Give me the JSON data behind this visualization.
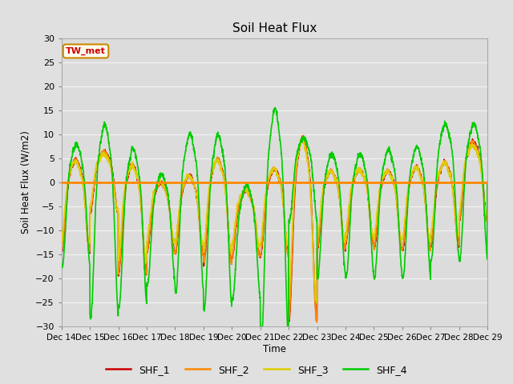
{
  "title": "Soil Heat Flux",
  "ylabel": "Soil Heat Flux (W/m2)",
  "xlabel": "Time",
  "ylim": [
    -30,
    30
  ],
  "fig_bg": "#e0e0e0",
  "plot_bg": "#dcdcdc",
  "grid_color": "#f0f0f0",
  "series_colors": {
    "SHF_1": "#cc0000",
    "SHF_2": "#ff8800",
    "SHF_3": "#ddcc00",
    "SHF_4": "#00cc00"
  },
  "zero_line_color": "#ff8800",
  "annotation_text": "TW_met",
  "annotation_fg": "#cc0000",
  "annotation_bg": "#fffff0",
  "annotation_border": "#cc8800",
  "yticks": [
    -30,
    -25,
    -20,
    -15,
    -10,
    -5,
    0,
    5,
    10,
    15,
    20,
    25,
    30
  ],
  "xtick_labels": [
    "Dec 14",
    "Dec 15",
    "Dec 16",
    "Dec 17",
    "Dec 18",
    "Dec 19",
    "Dec 20",
    "Dec 21",
    "Dec 22",
    "Dec 23",
    "Dec 24",
    "Dec 25",
    "Dec 26",
    "Dec 27",
    "Dec 28",
    "Dec 29"
  ],
  "n_days": 15,
  "n_pts": 144
}
